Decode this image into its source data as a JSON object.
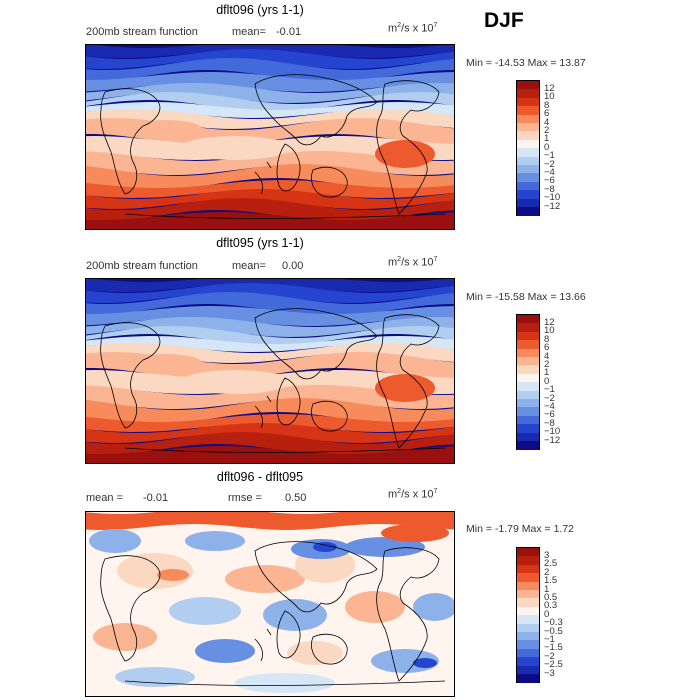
{
  "season": "DJF",
  "panels": [
    {
      "title": "dflt096 (yrs 1-1)",
      "left_text": "200mb stream function",
      "mean_label": "mean=",
      "mean_value": "-0.01",
      "units_base": "m",
      "units_exp": "2",
      "units_mid": "/s x 10",
      "units_scale_exp": "7",
      "min_label": "Min = ",
      "min_value": "-14.53",
      "max_label": "Max = ",
      "max_value": "13.87",
      "colorbar_labels": [
        "12",
        "10",
        "8",
        "6",
        "4",
        "2",
        "1",
        "0",
        "−1",
        "−2",
        "−4",
        "−6",
        "−8",
        "−10",
        "−12"
      ],
      "colors": [
        "#99100e",
        "#b7200f",
        "#d63415",
        "#ec5a2e",
        "#f88b5b",
        "#fbb592",
        "#fbd8c2",
        "#fff4ee",
        "#d5e6f7",
        "#b1cdef",
        "#8db2ea",
        "#6890e2",
        "#436adb",
        "#2544d0",
        "#1a2ab0",
        "#0c0c86"
      ]
    },
    {
      "title": "dflt095 (yrs 1-1)",
      "left_text": "200mb stream function",
      "mean_label": "mean=",
      "mean_value": "0.00",
      "units_base": "m",
      "units_exp": "2",
      "units_mid": "/s x 10",
      "units_scale_exp": "7",
      "min_label": "Min = ",
      "min_value": "-15.58",
      "max_label": "Max = ",
      "max_value": "13.66",
      "colorbar_labels": [
        "12",
        "10",
        "8",
        "6",
        "4",
        "2",
        "1",
        "0",
        "−1",
        "−2",
        "−4",
        "−6",
        "−8",
        "−10",
        "−12"
      ],
      "colors": [
        "#99100e",
        "#b7200f",
        "#d63415",
        "#ec5a2e",
        "#f88b5b",
        "#fbb592",
        "#fbd8c2",
        "#fff4ee",
        "#d5e6f7",
        "#b1cdef",
        "#8db2ea",
        "#6890e2",
        "#436adb",
        "#2544d0",
        "#1a2ab0",
        "#0c0c86"
      ]
    },
    {
      "title": "dflt096 - dflt095",
      "left_text": "mean =",
      "mean_label": "",
      "mean_value": "-0.01",
      "rmse_label": "rmse =",
      "rmse_value": "0.50",
      "units_base": "m",
      "units_exp": "2",
      "units_mid": "/s x 10",
      "units_scale_exp": "7",
      "min_label": "Min = ",
      "min_value": "-1.79",
      "max_label": "Max = ",
      "max_value": "1.72",
      "colorbar_labels": [
        "3",
        "2.5",
        "2",
        "1.5",
        "1",
        "0.5",
        "0.3",
        "0",
        "−0.3",
        "−0.5",
        "−1",
        "−1.5",
        "−2",
        "−2.5",
        "−3"
      ],
      "colors": [
        "#99100e",
        "#b7200f",
        "#d63415",
        "#ec5a2e",
        "#f88b5b",
        "#fbb592",
        "#fbd8c2",
        "#fff4ee",
        "#d5e6f7",
        "#b1cdef",
        "#8db2ea",
        "#6890e2",
        "#436adb",
        "#2544d0",
        "#1a2ab0",
        "#0c0c86"
      ]
    }
  ],
  "chart_data": [
    {
      "type": "heatmap",
      "title": "dflt096 (yrs 1-1)",
      "subtitle": "200mb stream function  mean= -0.01",
      "units": "m^2/s x 10^7",
      "min": -14.53,
      "max": 13.87,
      "levels": [
        -12,
        -10,
        -8,
        -6,
        -4,
        -2,
        -1,
        0,
        1,
        2,
        4,
        6,
        8,
        10,
        12
      ]
    },
    {
      "type": "heatmap",
      "title": "dflt095 (yrs 1-1)",
      "subtitle": "200mb stream function  mean= 0.00",
      "units": "m^2/s x 10^7",
      "min": -15.58,
      "max": 13.66,
      "levels": [
        -12,
        -10,
        -8,
        -6,
        -4,
        -2,
        -1,
        0,
        1,
        2,
        4,
        6,
        8,
        10,
        12
      ]
    },
    {
      "type": "heatmap",
      "title": "dflt096 - dflt095",
      "subtitle": "mean = -0.01  rmse = 0.50",
      "units": "m^2/s x 10^7",
      "min": -1.79,
      "max": 1.72,
      "levels": [
        -3,
        -2.5,
        -2,
        -1.5,
        -1,
        -0.5,
        -0.3,
        0,
        0.3,
        0.5,
        1,
        1.5,
        2,
        2.5,
        3
      ]
    }
  ]
}
